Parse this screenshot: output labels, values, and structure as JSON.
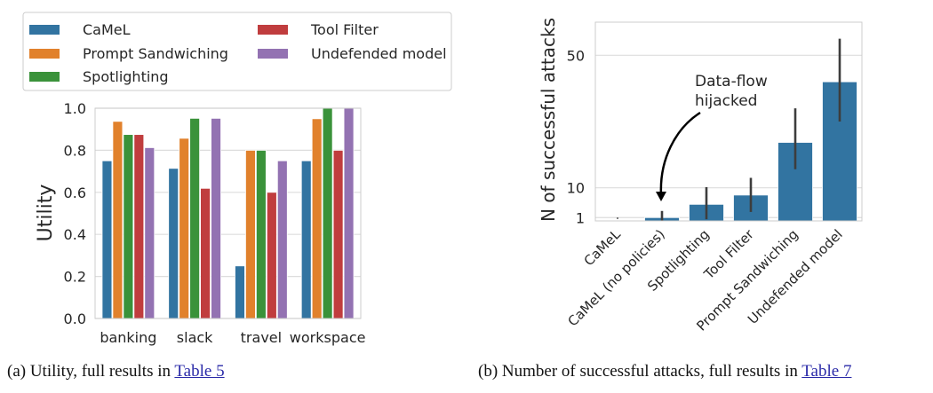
{
  "chart_data": [
    {
      "type": "bar",
      "title": "",
      "xlabel": "",
      "ylabel": "Utility",
      "ylim": [
        0,
        1.0
      ],
      "yticks": [
        "0.0",
        "0.2",
        "0.4",
        "0.6",
        "0.8",
        "1.0"
      ],
      "ytick_values": [
        0,
        0.2,
        0.4,
        0.6,
        0.8,
        1.0
      ],
      "grid": true,
      "legend_position": "top-left, above plot",
      "categories": [
        "banking",
        "slack",
        "travel",
        "workspace"
      ],
      "series": [
        {
          "name": "CaMeL",
          "color": "#3274a1",
          "values": [
            0.75,
            0.714,
            0.25,
            0.75
          ]
        },
        {
          "name": "Prompt Sandwiching",
          "color": "#e1812c",
          "values": [
            0.9375,
            0.857,
            0.8,
            0.95
          ]
        },
        {
          "name": "Spotlighting",
          "color": "#3a923a",
          "values": [
            0.875,
            0.952,
            0.8,
            1.0
          ]
        },
        {
          "name": "Tool Filter",
          "color": "#c03d3e",
          "values": [
            0.875,
            0.619,
            0.6,
            0.8
          ]
        },
        {
          "name": "Undefended model",
          "color": "#9372b2",
          "values": [
            0.8125,
            0.952,
            0.75,
            1.0
          ]
        }
      ],
      "legend_order": [
        "CaMeL",
        "Prompt Sandwiching",
        "Spotlighting",
        "Tool Filter",
        "Undefended model"
      ]
    },
    {
      "type": "bar",
      "title": "",
      "xlabel": "",
      "ylabel": "N of successful attacks",
      "ylim": [
        0,
        60
      ],
      "yticks": [
        "1",
        "10",
        "50"
      ],
      "ytick_values": [
        1,
        10,
        50
      ],
      "grid": true,
      "bar_color": "#3274a1",
      "categories": [
        "CaMeL",
        "CaMeL (no policies)",
        "Spotlighting",
        "Tool Filter",
        "Prompt Sandwiching",
        "Undefended model"
      ],
      "values": [
        0,
        1,
        5,
        7.8,
        23.7,
        42
      ],
      "error_low": [
        0,
        0,
        0.5,
        2.7,
        15.6,
        30
      ],
      "error_high": [
        0,
        3,
        10.2,
        13,
        34,
        55
      ],
      "annotation": {
        "text_lines": [
          "Data-flow",
          "hijacked"
        ],
        "target_category": "CaMeL (no policies)"
      }
    }
  ],
  "captions": {
    "a_prefix": "(a) Utility, full results in ",
    "a_link": "Table 5",
    "b_prefix": "(b) Number of successful attacks, full results in ",
    "b_link": "Table 7"
  }
}
